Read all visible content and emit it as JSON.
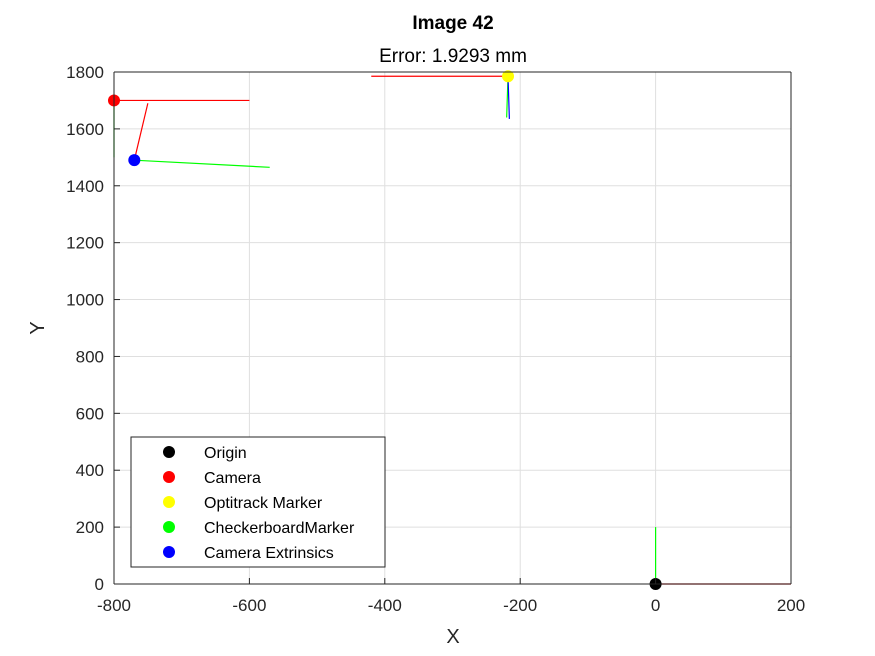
{
  "chart_data": {
    "type": "scatter",
    "title": "Image 42",
    "subtitle": "Error: 1.9293 mm",
    "xlabel": "X",
    "ylabel": "Y",
    "xlim": [
      -800,
      200
    ],
    "ylim": [
      0,
      1800
    ],
    "xticks": [
      -800,
      -600,
      -400,
      -200,
      0,
      200
    ],
    "yticks": [
      0,
      200,
      400,
      600,
      800,
      1000,
      1200,
      1400,
      1600,
      1800
    ],
    "xtick_labels": [
      "-800",
      "-600",
      "-400",
      "-200",
      "0",
      "200"
    ],
    "ytick_labels": [
      "0",
      "200",
      "400",
      "600",
      "800",
      "1000",
      "1200",
      "1400",
      "1600",
      "1800"
    ],
    "grid": true,
    "legend_position": "bottom-left",
    "points": [
      {
        "name": "Origin",
        "x": 0,
        "y": 0,
        "color": "#000000"
      },
      {
        "name": "Camera",
        "x": -800,
        "y": 1700,
        "color": "#ff0000"
      },
      {
        "name": "Optitrack Marker",
        "x": -218,
        "y": 1785,
        "color": "#ffff00"
      },
      {
        "name": "CheckerboardMarker",
        "x": -218,
        "y": 1785,
        "color": "#00ff00"
      },
      {
        "name": "Camera Extrinsics",
        "x": -770,
        "y": 1490,
        "color": "#0000ff"
      }
    ],
    "axes_segments": [
      {
        "x1": 0,
        "y1": 0,
        "x2": 200,
        "y2": 0,
        "color": "#ff0000"
      },
      {
        "x1": 0,
        "y1": 0,
        "x2": 0,
        "y2": 200,
        "color": "#00ff00"
      },
      {
        "x1": -800,
        "y1": 1700,
        "x2": -600,
        "y2": 1700,
        "color": "#ff0000"
      },
      {
        "x1": -800,
        "y1": 1700,
        "x2": -800,
        "y2": 1500,
        "color": "#00ff00"
      },
      {
        "x1": -800,
        "y1": 1700,
        "x2": -800,
        "y2": 1700,
        "color": "#0000ff"
      },
      {
        "x1": -218,
        "y1": 1785,
        "x2": -420,
        "y2": 1785,
        "color": "#ff0000"
      },
      {
        "x1": -218,
        "y1": 1785,
        "x2": -220,
        "y2": 1640,
        "color": "#00ff00"
      },
      {
        "x1": -218,
        "y1": 1785,
        "x2": -216,
        "y2": 1635,
        "color": "#0000ff"
      },
      {
        "x1": -770,
        "y1": 1490,
        "x2": -750,
        "y2": 1690,
        "color": "#ff0000"
      },
      {
        "x1": -770,
        "y1": 1490,
        "x2": -570,
        "y2": 1465,
        "color": "#00ff00"
      }
    ]
  },
  "legend": {
    "items": [
      {
        "label": "Origin",
        "color": "#000000"
      },
      {
        "label": "Camera",
        "color": "#ff0000"
      },
      {
        "label": "Optitrack Marker",
        "color": "#ffff00"
      },
      {
        "label": "CheckerboardMarker",
        "color": "#00ff00"
      },
      {
        "label": "Camera Extrinsics",
        "color": "#0000ff"
      }
    ]
  }
}
